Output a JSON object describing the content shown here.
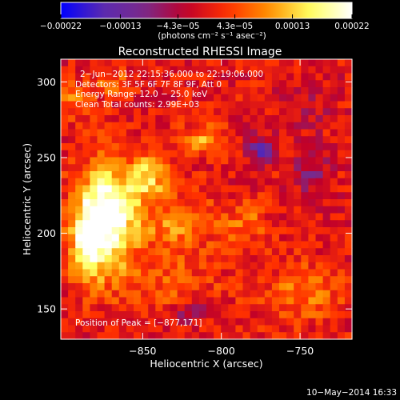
{
  "chart_data": {
    "type": "heatmap",
    "title": "Reconstructed RHESSI Image",
    "xlabel": "Heliocentric X (arcsec)",
    "ylabel": "Heliocentric Y (arcsec)",
    "xlim": [
      -902,
      -717
    ],
    "ylim": [
      130,
      315
    ],
    "x_ticks": [
      -850,
      -800,
      -750
    ],
    "x_tick_labels": [
      "−850",
      "−800",
      "−750"
    ],
    "y_ticks": [
      150,
      200,
      250,
      300
    ],
    "y_tick_labels": [
      "150",
      "200",
      "250",
      "300"
    ],
    "colorbar": {
      "range": [
        -0.00022,
        0.00022
      ],
      "ticks": [
        -0.00022,
        -0.00013,
        -4.3e-05,
        4.3e-05,
        0.00013,
        0.00022
      ],
      "tick_labels": [
        "−0.00022",
        "−0.00013",
        "−4.3e−05",
        "4.3e−05",
        "0.00013",
        "0.00022"
      ],
      "unit_label": "(photons cm⁻² s⁻¹ asec⁻²)",
      "colors": [
        "#0000ff",
        "#5a2ab0",
        "#7a2a8a",
        "#c0002a",
        "#ff3000",
        "#ff9000",
        "#ffff60",
        "#ffffff"
      ]
    },
    "info_lines": [
      "2−Jun−2012 22:15:36.000 to 22:19:06.000",
      "Detectors: 3F 5F 6F 7F 8F 9F, Att 0",
      "Energy Range: 12.0 − 25.0 keV",
      "Clean     Total counts: 2.99E+03"
    ],
    "peak_label": "Position of Peak = [−877,171]",
    "peak_position": [
      -877,
      171
    ],
    "emission_sources": [
      {
        "x": -872,
        "y": 212,
        "sigma_x": 13,
        "sigma_y": 24,
        "amplitude": 1.0
      },
      {
        "x": -885,
        "y": 196,
        "sigma_x": 8,
        "sigma_y": 18,
        "amplitude": 0.6
      },
      {
        "x": -846,
        "y": 237,
        "sigma_x": 8,
        "sigma_y": 10,
        "amplitude": 0.55
      },
      {
        "x": -812,
        "y": 262,
        "sigma_x": 9,
        "sigma_y": 7,
        "amplitude": 0.4
      },
      {
        "x": -828,
        "y": 205,
        "sigma_x": 16,
        "sigma_y": 14,
        "amplitude": 0.38
      },
      {
        "x": -785,
        "y": 207,
        "sigma_x": 10,
        "sigma_y": 10,
        "amplitude": 0.28
      },
      {
        "x": -748,
        "y": 160,
        "sigma_x": 18,
        "sigma_y": 14,
        "amplitude": 0.28
      },
      {
        "x": -835,
        "y": 165,
        "sigma_x": 25,
        "sigma_y": 12,
        "amplitude": 0.22
      },
      {
        "x": -895,
        "y": 288,
        "sigma_x": 8,
        "sigma_y": 8,
        "amplitude": 0.3
      },
      {
        "x": -870,
        "y": 300,
        "sigma_x": 9,
        "sigma_y": 6,
        "amplitude": 0.25
      },
      {
        "x": -775,
        "y": 255,
        "sigma_x": 6,
        "sigma_y": 6,
        "amplitude": -0.55
      },
      {
        "x": -742,
        "y": 240,
        "sigma_x": 8,
        "sigma_y": 10,
        "amplitude": -0.3
      },
      {
        "x": -820,
        "y": 148,
        "sigma_x": 8,
        "sigma_y": 6,
        "amplitude": -0.3
      },
      {
        "x": -745,
        "y": 285,
        "sigma_x": 10,
        "sigma_y": 12,
        "amplitude": -0.15
      }
    ]
  },
  "footer": {
    "date": "10−May−2014 16:33"
  }
}
